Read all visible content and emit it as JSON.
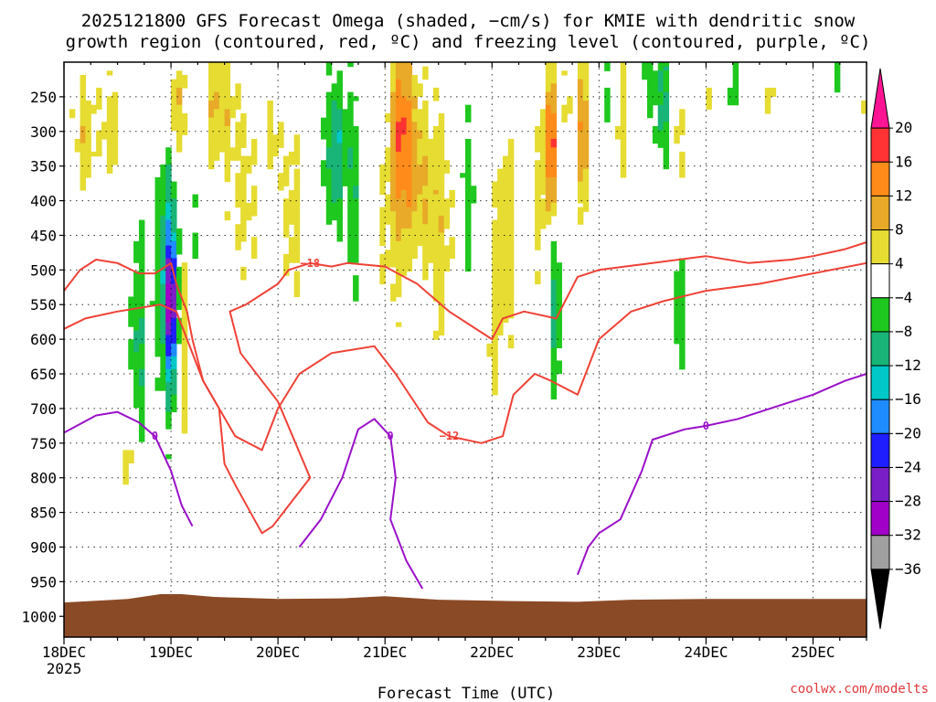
{
  "chart_data": {
    "type": "heatmap",
    "title_line1": "2025121800 GFS Forecast Omega (shaded, −cm/s) for KMIE with dendritic snow",
    "title_line2": "growth region (contoured, red, ºC) and freezing level (contoured, purple, ºC)",
    "xlabel": "Forecast Time (UTC)",
    "x_ticks": [
      "18DEC",
      "19DEC",
      "20DEC",
      "21DEC",
      "22DEC",
      "23DEC",
      "24DEC",
      "25DEC"
    ],
    "x_year": "2025",
    "x_range_days": [
      0,
      7.5
    ],
    "y_ticks": [
      "250",
      "300",
      "350",
      "400",
      "450",
      "500",
      "550",
      "600",
      "650",
      "700",
      "750",
      "800",
      "850",
      "900",
      "950",
      "1000"
    ],
    "y_tick_values": [
      250,
      300,
      350,
      400,
      450,
      500,
      550,
      600,
      650,
      700,
      750,
      800,
      850,
      900,
      950,
      1000
    ],
    "y_range_hpa": [
      200,
      1030
    ],
    "colorbar": {
      "labels": [
        "20",
        "16",
        "12",
        "8",
        "4",
        "−4",
        "−8",
        "−12",
        "−16",
        "−20",
        "−24",
        "−28",
        "−32",
        "−36"
      ],
      "colors": [
        "#ff1493",
        "#ff3333",
        "#ff8c1a",
        "#e8aa28",
        "#e6dc32",
        "#ffffff",
        "#1ec81e",
        "#18b478",
        "#00c8c8",
        "#1e8cff",
        "#1e1eff",
        "#7a1ec8",
        "#a000c8",
        "#a0a0a0",
        "#000000"
      ]
    },
    "omega_blobs": [
      {
        "t": 0.2,
        "p": 300,
        "w": 0.1,
        "h": 200,
        "v": 8
      },
      {
        "t": 0.45,
        "p": 290,
        "w": 0.1,
        "h": 170,
        "v": 5
      },
      {
        "t": 0.68,
        "p": 600,
        "w": 0.09,
        "h": 300,
        "v": -8
      },
      {
        "t": 0.6,
        "p": 780,
        "w": 0.08,
        "h": 180,
        "v": 6
      },
      {
        "t": 0.95,
        "p": 500,
        "w": 0.1,
        "h": 420,
        "v": -12
      },
      {
        "t": 1.0,
        "p": 550,
        "w": 0.05,
        "h": 200,
        "v": -24
      },
      {
        "t": 1.05,
        "p": 270,
        "w": 0.06,
        "h": 150,
        "v": 10
      },
      {
        "t": 1.15,
        "p": 560,
        "w": 0.05,
        "h": 380,
        "v": 8
      },
      {
        "t": 1.2,
        "p": 460,
        "w": 0.08,
        "h": 300,
        "v": -6
      },
      {
        "t": 1.45,
        "p": 260,
        "w": 0.18,
        "h": 180,
        "v": 7
      },
      {
        "t": 1.65,
        "p": 400,
        "w": 0.14,
        "h": 300,
        "v": 5
      },
      {
        "t": 1.95,
        "p": 300,
        "w": 0.08,
        "h": 160,
        "v": 6
      },
      {
        "t": 2.15,
        "p": 420,
        "w": 0.14,
        "h": 250,
        "v": 5
      },
      {
        "t": 2.55,
        "p": 330,
        "w": 0.1,
        "h": 230,
        "v": -12
      },
      {
        "t": 2.7,
        "p": 350,
        "w": 0.05,
        "h": 420,
        "v": -8
      },
      {
        "t": 2.75,
        "p": 250,
        "w": 0.06,
        "h": 160,
        "v": 4
      },
      {
        "t": 3.0,
        "p": 450,
        "w": 0.14,
        "h": 340,
        "v": 5
      },
      {
        "t": 3.15,
        "p": 300,
        "w": 0.1,
        "h": 260,
        "v": 14
      },
      {
        "t": 3.3,
        "p": 360,
        "w": 0.12,
        "h": 300,
        "v": 9
      },
      {
        "t": 3.55,
        "p": 430,
        "w": 0.18,
        "h": 320,
        "v": 6
      },
      {
        "t": 3.75,
        "p": 400,
        "w": 0.1,
        "h": 250,
        "v": -7
      },
      {
        "t": 4.0,
        "p": 620,
        "w": 0.08,
        "h": 230,
        "v": 5
      },
      {
        "t": 4.1,
        "p": 450,
        "w": 0.12,
        "h": 300,
        "v": 7
      },
      {
        "t": 4.4,
        "p": 400,
        "w": 0.1,
        "h": 300,
        "v": 5
      },
      {
        "t": 4.55,
        "p": 320,
        "w": 0.06,
        "h": 200,
        "v": 16
      },
      {
        "t": 4.6,
        "p": 560,
        "w": 0.05,
        "h": 230,
        "v": -10
      },
      {
        "t": 4.7,
        "p": 250,
        "w": 0.06,
        "h": 160,
        "v": 5
      },
      {
        "t": 4.85,
        "p": 300,
        "w": 0.06,
        "h": 200,
        "v": 11
      },
      {
        "t": 5.05,
        "p": 250,
        "w": 0.08,
        "h": 140,
        "v": -6
      },
      {
        "t": 5.2,
        "p": 280,
        "w": 0.05,
        "h": 180,
        "v": 5
      },
      {
        "t": 5.45,
        "p": 230,
        "w": 0.07,
        "h": 160,
        "v": -7
      },
      {
        "t": 5.6,
        "p": 260,
        "w": 0.06,
        "h": 180,
        "v": -10
      },
      {
        "t": 5.75,
        "p": 310,
        "w": 0.1,
        "h": 200,
        "v": 5
      },
      {
        "t": 5.75,
        "p": 560,
        "w": 0.06,
        "h": 200,
        "v": -8
      },
      {
        "t": 6.0,
        "p": 240,
        "w": 0.05,
        "h": 120,
        "v": 5
      },
      {
        "t": 6.25,
        "p": 230,
        "w": 0.04,
        "h": 120,
        "v": -6
      },
      {
        "t": 6.6,
        "p": 250,
        "w": 0.04,
        "h": 80,
        "v": 5
      },
      {
        "t": 7.2,
        "p": 220,
        "w": 0.05,
        "h": 80,
        "v": -6
      },
      {
        "t": 7.45,
        "p": 240,
        "w": 0.05,
        "h": 140,
        "v": 5
      }
    ],
    "dgz_contours": [
      {
        "label": "−18",
        "points": [
          [
            0,
            530
          ],
          [
            0.15,
            500
          ],
          [
            0.3,
            485
          ],
          [
            0.5,
            490
          ],
          [
            0.7,
            505
          ],
          [
            0.85,
            505
          ],
          [
            1.0,
            490
          ],
          [
            1.05,
            520
          ],
          [
            1.15,
            560
          ],
          [
            1.2,
            600
          ],
          [
            1.3,
            660
          ],
          [
            1.45,
            700
          ],
          [
            1.5,
            780
          ],
          [
            1.6,
            810
          ],
          [
            1.85,
            880
          ],
          [
            1.95,
            870
          ],
          [
            2.1,
            840
          ],
          [
            2.3,
            800
          ],
          [
            2.0,
            690
          ],
          [
            1.65,
            620
          ],
          [
            1.55,
            560
          ],
          [
            1.7,
            550
          ],
          [
            1.9,
            530
          ],
          [
            2.0,
            520
          ],
          [
            2.1,
            500
          ],
          [
            2.3,
            490
          ],
          [
            2.5,
            495
          ],
          [
            2.65,
            490
          ],
          [
            3.0,
            495
          ],
          [
            3.3,
            520
          ],
          [
            3.6,
            560
          ],
          [
            3.8,
            580
          ],
          [
            4.0,
            600
          ],
          [
            4.1,
            570
          ],
          [
            4.3,
            560
          ],
          [
            4.6,
            570
          ],
          [
            4.7,
            540
          ],
          [
            4.8,
            510
          ],
          [
            5.0,
            500
          ],
          [
            5.5,
            490
          ],
          [
            6.0,
            480
          ],
          [
            6.4,
            490
          ],
          [
            6.8,
            485
          ],
          [
            7.0,
            480
          ],
          [
            7.3,
            470
          ],
          [
            7.5,
            460
          ]
        ]
      },
      {
        "label": "−12",
        "points": [
          [
            0,
            585
          ],
          [
            0.2,
            570
          ],
          [
            0.5,
            560
          ],
          [
            0.7,
            555
          ],
          [
            0.9,
            550
          ],
          [
            1.05,
            560
          ],
          [
            1.15,
            600
          ],
          [
            1.3,
            660
          ],
          [
            1.6,
            740
          ],
          [
            1.85,
            760
          ],
          [
            2.0,
            700
          ],
          [
            2.2,
            650
          ],
          [
            2.5,
            620
          ],
          [
            2.9,
            610
          ],
          [
            3.1,
            650
          ],
          [
            3.4,
            720
          ],
          [
            3.6,
            740
          ],
          [
            3.9,
            750
          ],
          [
            4.1,
            740
          ],
          [
            4.2,
            680
          ],
          [
            4.4,
            650
          ],
          [
            4.55,
            660
          ],
          [
            4.8,
            680
          ],
          [
            5.0,
            600
          ],
          [
            5.3,
            560
          ],
          [
            5.6,
            545
          ],
          [
            6.0,
            530
          ],
          [
            6.5,
            520
          ],
          [
            7.0,
            505
          ],
          [
            7.5,
            490
          ]
        ]
      }
    ],
    "freezing_contours": [
      {
        "label": "0",
        "points": [
          [
            0,
            735
          ],
          [
            0.3,
            710
          ],
          [
            0.5,
            705
          ],
          [
            0.7,
            720
          ],
          [
            0.85,
            740
          ],
          [
            1.0,
            790
          ],
          [
            1.1,
            840
          ],
          [
            1.2,
            870
          ]
        ]
      },
      {
        "label": "0",
        "points": [
          [
            2.2,
            900
          ],
          [
            2.4,
            860
          ],
          [
            2.6,
            800
          ],
          [
            2.75,
            730
          ],
          [
            2.9,
            715
          ],
          [
            3.05,
            740
          ],
          [
            3.1,
            800
          ],
          [
            3.05,
            860
          ],
          [
            3.2,
            920
          ],
          [
            3.35,
            960
          ]
        ]
      },
      {
        "label": "0",
        "points": [
          [
            4.8,
            940
          ],
          [
            4.9,
            900
          ],
          [
            5.0,
            880
          ],
          [
            5.2,
            860
          ],
          [
            5.4,
            790
          ],
          [
            5.5,
            745
          ],
          [
            5.8,
            730
          ],
          [
            6.0,
            725
          ],
          [
            6.3,
            715
          ],
          [
            6.6,
            700
          ],
          [
            7.0,
            680
          ],
          [
            7.3,
            660
          ],
          [
            7.5,
            650
          ]
        ]
      }
    ]
  },
  "credit": "coolwx.com/modelts"
}
